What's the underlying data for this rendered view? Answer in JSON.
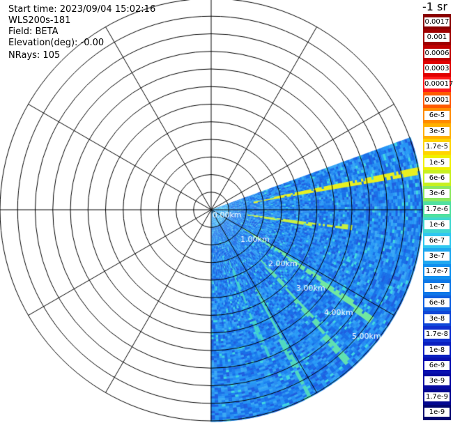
{
  "header": {
    "start_time": "Start time: 2023/09/04 15:02:16",
    "instrument": "WLS200s-181",
    "field": "Field: BETA",
    "elevation": "Elevation(deg): -0.00",
    "nrays": "NRays: 105"
  },
  "chart_data": {
    "type": "heatmap",
    "projection": "polar-ppi",
    "field": "BETA",
    "elevation_deg": -0.0,
    "n_rays": 105,
    "azimuth_coverage_deg": [
      70,
      180
    ],
    "range_max_km": 6.0,
    "range_rings_km": [
      0.5,
      1.0,
      1.5,
      2.0,
      2.5,
      3.0,
      3.5,
      4.0,
      4.5,
      5.0,
      5.5,
      6.0
    ],
    "range_ring_labels": [
      "0.00km",
      "1.00km",
      "2.00km",
      "3.00km",
      "4.00km",
      "5.00km"
    ],
    "spoke_step_deg": 30,
    "colorbar": {
      "unit_label": "-1 sr",
      "tick_labels": [
        "0.0017",
        "0.001",
        "0.0006",
        "0.0003",
        "0.00017",
        "0.0001",
        "6e-5",
        "3e-5",
        "1.7e-5",
        "1e-5",
        "6e-6",
        "3e-6",
        "1.7e-6",
        "1e-6",
        "6e-7",
        "3e-7",
        "1.7e-7",
        "1e-7",
        "6e-8",
        "3e-8",
        "1.7e-8",
        "1e-8",
        "6e-9",
        "3e-9",
        "1.7e-9",
        "1e-9"
      ],
      "colors": [
        "#8b0000",
        "#a00000",
        "#c00000",
        "#e00000",
        "#ff1a1a",
        "#ff5a00",
        "#ff8c00",
        "#ffb000",
        "#ffd400",
        "#f0f000",
        "#c8f020",
        "#8ce860",
        "#50e0a0",
        "#40d8d0",
        "#30c8f0",
        "#20a8f0",
        "#1090f0",
        "#1078e8",
        "#1060e0",
        "#1048d8",
        "#1030d0",
        "#0a20c0",
        "#0810b0",
        "#060aa0",
        "#040890",
        "#020670"
      ]
    }
  }
}
